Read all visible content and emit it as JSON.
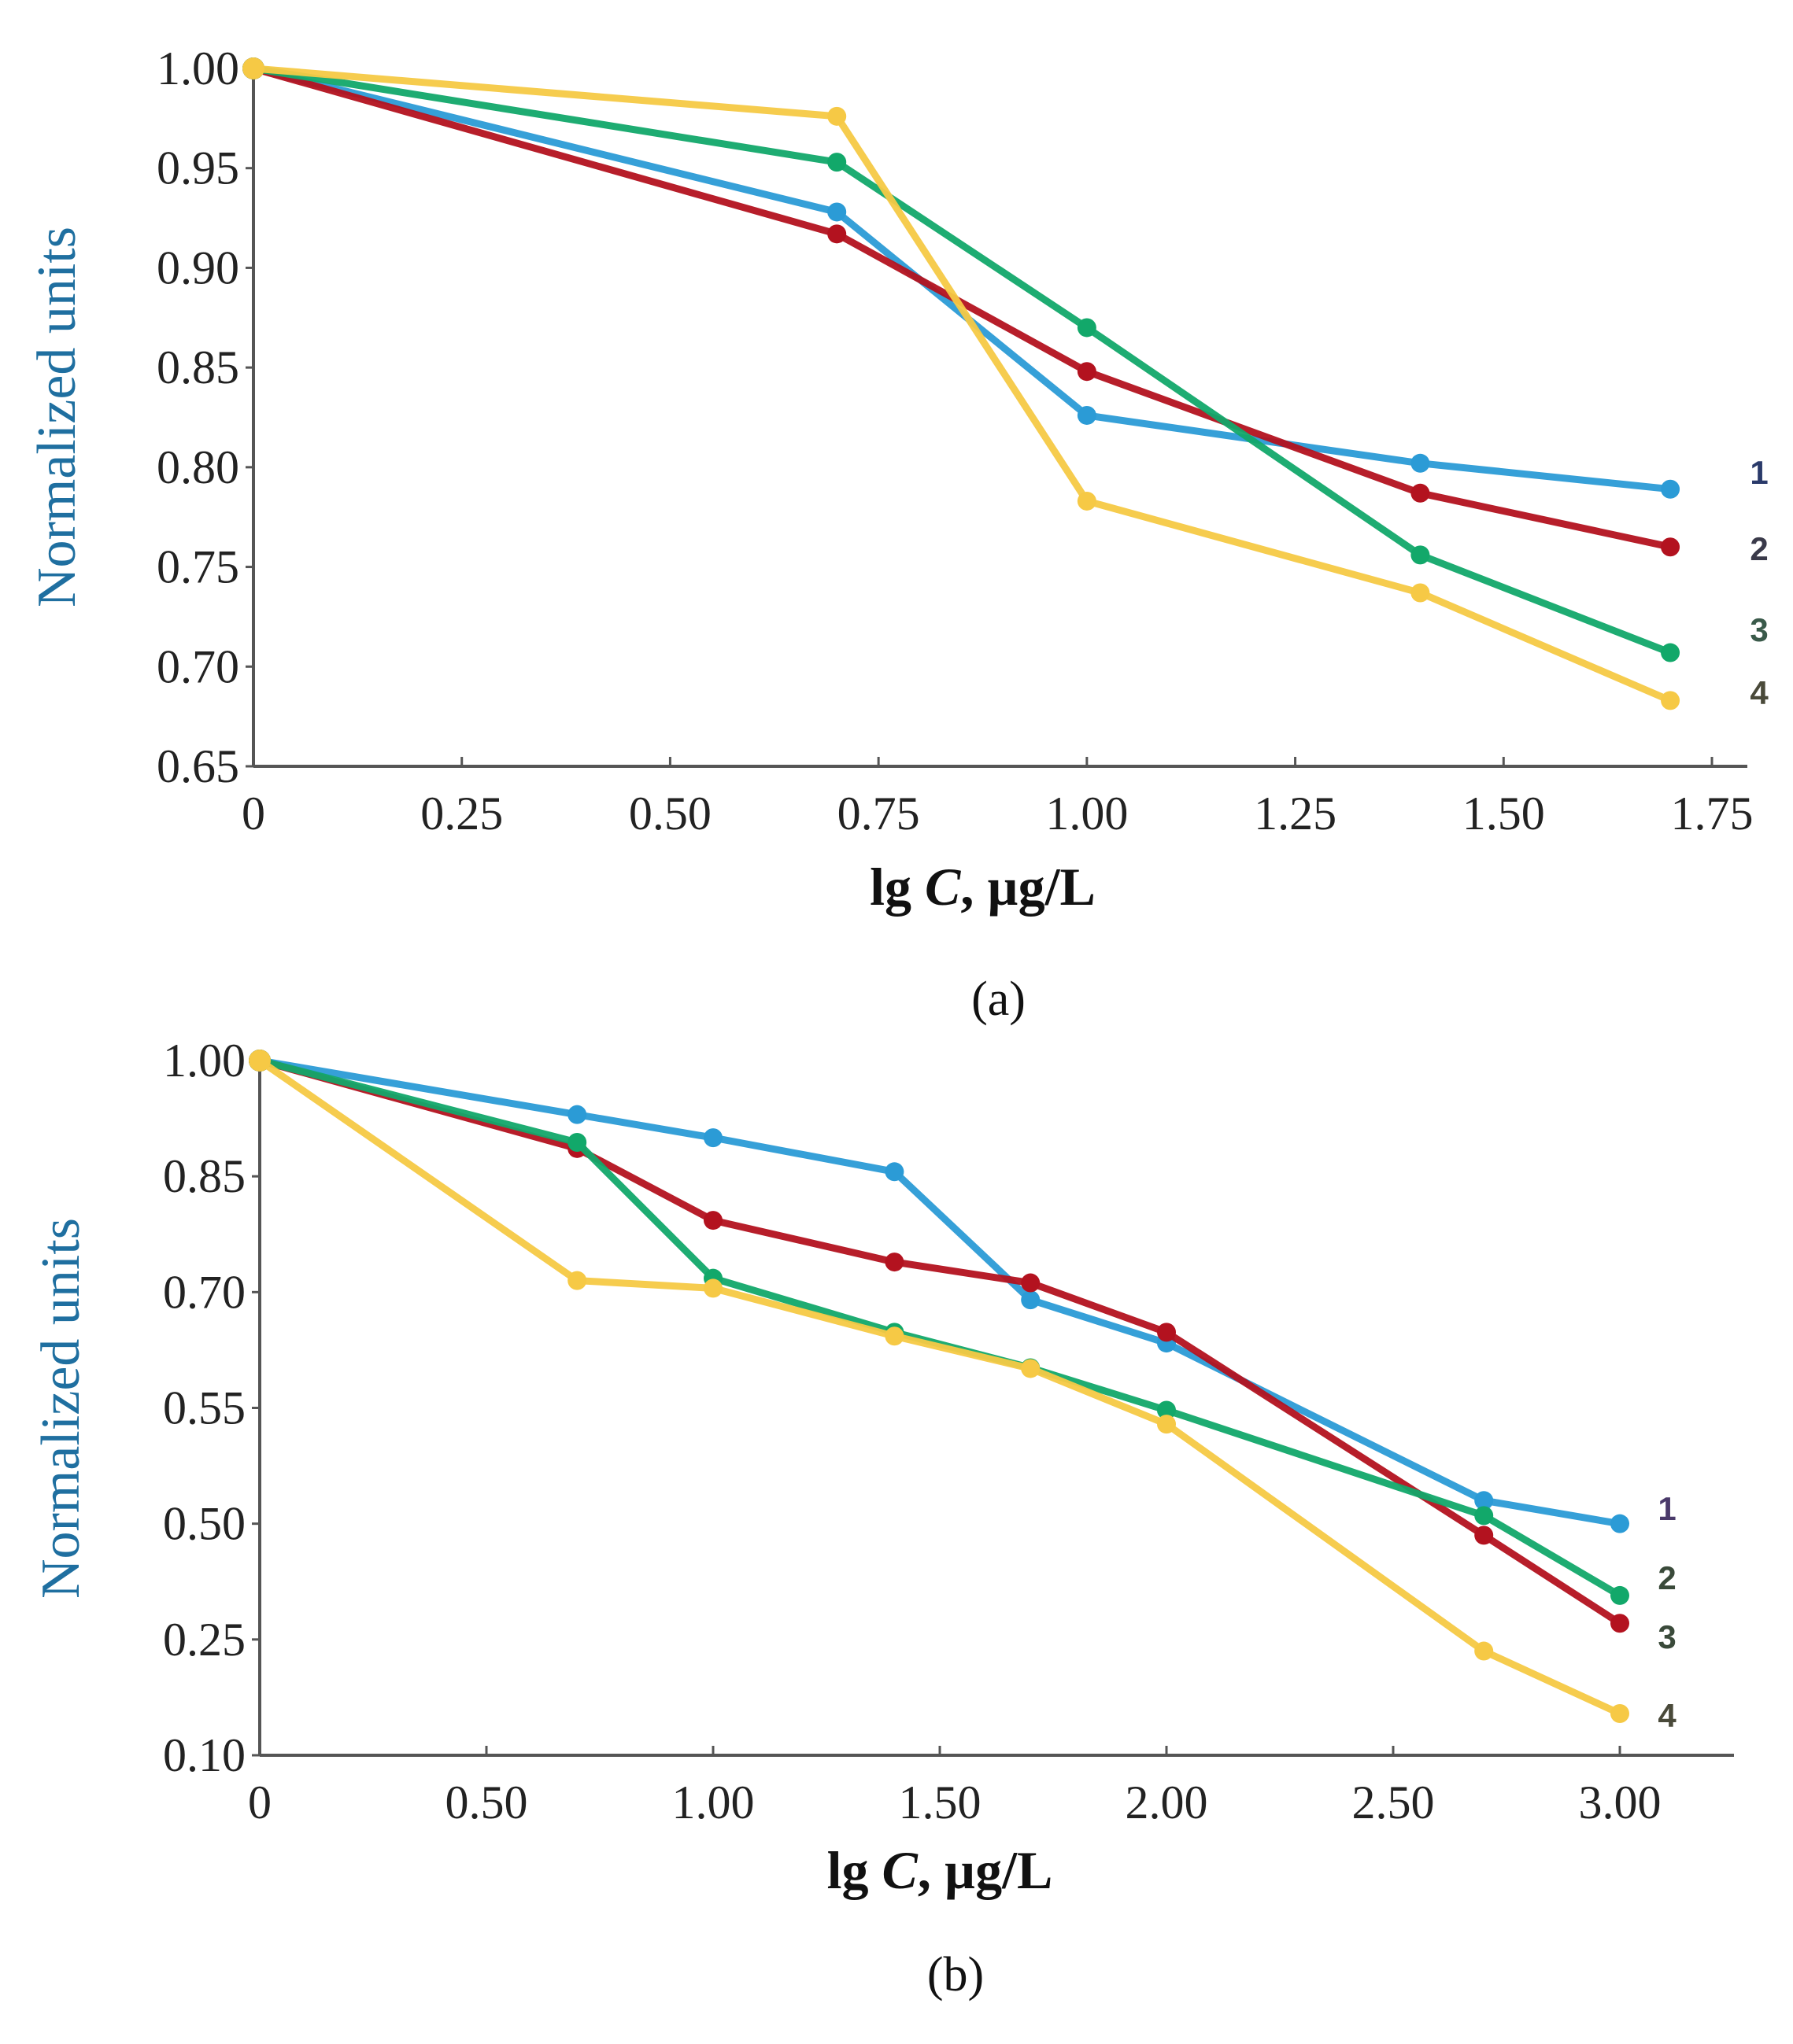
{
  "chart_data": [
    {
      "type": "line",
      "panel_label": "(a)",
      "xlabel_prefix": "lg ",
      "xlabel_var": "C",
      "xlabel_suffix": ", µg/L",
      "ylabel": "Normalized units",
      "xlim": [
        0,
        1.75
      ],
      "ylim": [
        0.65,
        1.0
      ],
      "xticks": [
        0,
        0.25,
        0.5,
        0.75,
        1.0,
        1.25,
        1.5,
        1.75
      ],
      "xtick_labels": [
        "0",
        "0.25",
        "0.50",
        "0.75",
        "1.00",
        "1.25",
        "1.50",
        "1.75"
      ],
      "yticks": [
        1.0,
        0.95,
        0.9,
        0.85,
        0.8,
        0.75,
        0.7,
        0.65
      ],
      "ytick_labels": [
        "1.00",
        "0.95",
        "0.90",
        "0.85",
        "0.80",
        "0.75",
        "0.70",
        "0.65"
      ],
      "grid": false,
      "x": [
        0,
        0.7,
        1.0,
        1.4,
        1.7
      ],
      "series": [
        {
          "name": "1",
          "color": "#2b9bd6",
          "label_color": "#2a3a6a",
          "values": [
            1.0,
            0.928,
            0.826,
            0.802,
            0.789
          ]
        },
        {
          "name": "2",
          "color": "#b3121f",
          "label_color": "#3a3a4a",
          "values": [
            1.0,
            0.917,
            0.848,
            0.787,
            0.76
          ]
        },
        {
          "name": "3",
          "color": "#12a86a",
          "label_color": "#3a5a4a",
          "values": [
            1.0,
            0.953,
            0.87,
            0.756,
            0.707
          ]
        },
        {
          "name": "4",
          "color": "#f6c945",
          "label_color": "#4a4a3a",
          "values": [
            1.0,
            0.976,
            0.783,
            0.737,
            0.683
          ]
        }
      ]
    },
    {
      "type": "line",
      "panel_label": "(b)",
      "xlabel_prefix": "lg ",
      "xlabel_var": "C",
      "xlabel_suffix": ", µg/L",
      "ylabel": "Normalized units",
      "xlim": [
        0,
        3.0
      ],
      "ylim": [
        0.1,
        1.0
      ],
      "y_scale_note": "tick labels are equally spaced (piecewise axis)",
      "xticks": [
        0,
        0.5,
        1.0,
        1.5,
        2.0,
        2.5,
        3.0
      ],
      "xtick_labels": [
        "0",
        "0.50",
        "1.00",
        "1.50",
        "2.00",
        "2.50",
        "3.00"
      ],
      "yticks": [
        1.0,
        0.85,
        0.7,
        0.55,
        0.5,
        0.25,
        0.1
      ],
      "ytick_labels": [
        "1.00",
        "0.85",
        "0.70",
        "0.55",
        "0.50",
        "0.25",
        "0.10"
      ],
      "grid": false,
      "x": [
        0,
        0.7,
        1.0,
        1.4,
        1.7,
        2.0,
        2.7,
        3.0
      ],
      "series": [
        {
          "name": "1",
          "color": "#2b9bd6",
          "label_color": "#4a3a6a",
          "values": [
            1.0,
            0.93,
            0.9,
            0.856,
            0.69,
            0.634,
            0.51,
            0.5
          ]
        },
        {
          "name": "2",
          "color": "#b3121f",
          "label_color": "#3a4a3a",
          "values": [
            1.0,
            0.886,
            0.793,
            0.739,
            0.712,
            0.648,
            0.475,
            0.285
          ]
        },
        {
          "name": "3",
          "color": "#12a86a",
          "label_color": "#3a4a3a",
          "values": [
            1.0,
            0.894,
            0.718,
            0.648,
            0.602,
            0.549,
            0.5035,
            0.345
          ]
        },
        {
          "name": "4",
          "color": "#f6c945",
          "label_color": "#4a4a3a",
          "values": [
            1.0,
            0.715,
            0.705,
            0.643,
            0.601,
            0.543,
            0.235,
            0.154
          ]
        }
      ]
    }
  ]
}
